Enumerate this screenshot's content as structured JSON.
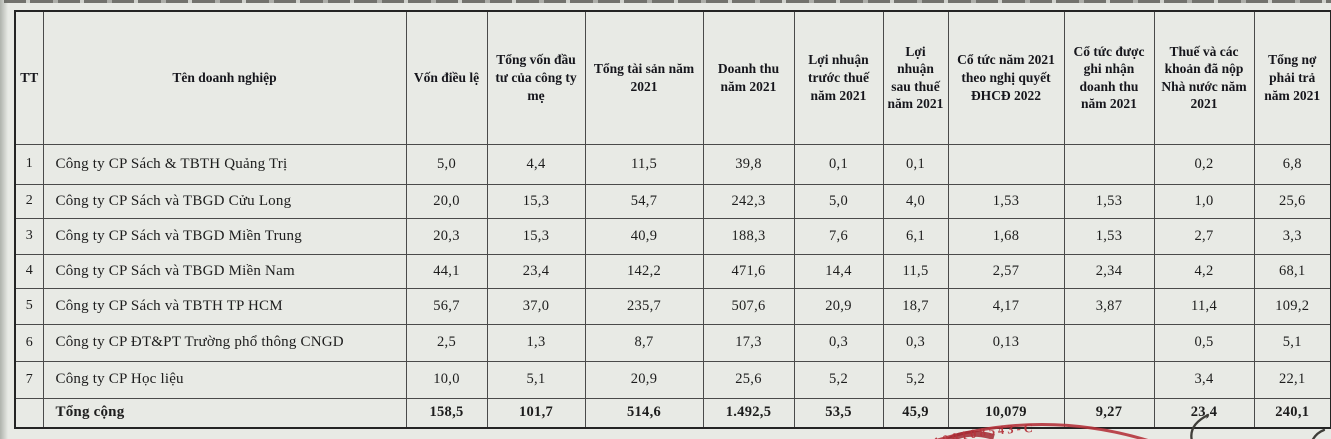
{
  "table": {
    "columns": [
      {
        "id": "tt",
        "label": "TT"
      },
      {
        "id": "ten-doanh-nghiep",
        "label": "Tên doanh nghiệp"
      },
      {
        "id": "von-dieu-le",
        "label": "Vốn điều lệ"
      },
      {
        "id": "tong-von-dau-tu",
        "label": "Tổng vốn đầu tư của công ty mẹ"
      },
      {
        "id": "tong-tai-san",
        "label": "Tổng tài sản năm 2021"
      },
      {
        "id": "doanh-thu",
        "label": "Doanh thu năm 2021"
      },
      {
        "id": "loi-nhuan-truoc-thue",
        "label": "Lợi nhuận trước thuế năm 2021"
      },
      {
        "id": "loi-nhuan-sau-thue",
        "label": "Lợi nhuận sau thuế năm 2021"
      },
      {
        "id": "co-tuc-nghi-quyet",
        "label": "Cổ tức năm 2021 theo nghị quyết ĐHCĐ 2022"
      },
      {
        "id": "co-tuc-ghi-nhan",
        "label": "Cổ tức được ghi nhận doanh thu năm 2021"
      },
      {
        "id": "thue-da-nop",
        "label": "Thuế và các khoản đã nộp Nhà nước năm 2021"
      },
      {
        "id": "tong-no",
        "label": "Tổng nợ phải trả năm 2021"
      }
    ],
    "rows": [
      {
        "tt": "1",
        "name": "Công ty CP Sách & TBTH Quảng Trị",
        "values": [
          "5,0",
          "4,4",
          "11,5",
          "39,8",
          "0,1",
          "0,1",
          "",
          "",
          "0,2",
          "6,8"
        ]
      },
      {
        "tt": "2",
        "name": "Công ty CP Sách và TBGD Cửu Long",
        "values": [
          "20,0",
          "15,3",
          "54,7",
          "242,3",
          "5,0",
          "4,0",
          "1,53",
          "1,53",
          "1,0",
          "25,6"
        ]
      },
      {
        "tt": "3",
        "name": "Công ty CP Sách và TBGD Miền Trung",
        "values": [
          "20,3",
          "15,3",
          "40,9",
          "188,3",
          "7,6",
          "6,1",
          "1,68",
          "1,53",
          "2,7",
          "3,3"
        ]
      },
      {
        "tt": "4",
        "name": "Công ty CP Sách và TBGD Miền Nam",
        "values": [
          "44,1",
          "23,4",
          "142,2",
          "471,6",
          "14,4",
          "11,5",
          "2,57",
          "2,34",
          "4,2",
          "68,1"
        ]
      },
      {
        "tt": "5",
        "name": "Công ty CP Sách và TBTH TP HCM",
        "values": [
          "56,7",
          "37,0",
          "235,7",
          "507,6",
          "20,9",
          "18,7",
          "4,17",
          "3,87",
          "11,4",
          "109,2"
        ]
      },
      {
        "tt": "6",
        "name": "Công ty CP ĐT&PT Trường phổ thông CNGD",
        "values": [
          "2,5",
          "1,3",
          "8,7",
          "17,3",
          "0,3",
          "0,3",
          "0,13",
          "",
          "0,5",
          "5,1"
        ]
      },
      {
        "tt": "7",
        "name": "Công ty CP Học liệu",
        "values": [
          "10,0",
          "5,1",
          "20,9",
          "25,6",
          "5,2",
          "5,2",
          "",
          "",
          "3,4",
          "22,1"
        ]
      }
    ],
    "total": {
      "label": "Tổng cộng",
      "values": [
        "158,5",
        "101,7",
        "514,6",
        "1.492,5",
        "53,5",
        "45,9",
        "10,079",
        "9,27",
        "23,4",
        "240,1"
      ]
    }
  },
  "stamp": {
    "text": "0100108543-C",
    "color": "#b5343c"
  },
  "colors": {
    "paper": "#e8eae5",
    "border": "#4a4a4a",
    "text": "#1d1d1d",
    "stamp_red": "#b5343c"
  }
}
